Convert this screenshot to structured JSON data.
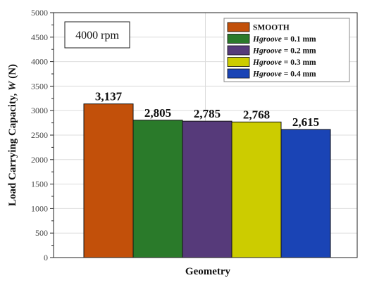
{
  "chart_data": {
    "type": "bar",
    "annotation": "4000 rpm",
    "xlabel": "Geometry",
    "ylabel_main": "Load Carrying Capacity, ",
    "ylabel_var": "W",
    "ylabel_unit": " (N)",
    "ylim": [
      0,
      5000
    ],
    "yticks": [
      0,
      500,
      1000,
      1500,
      2000,
      2500,
      3000,
      3500,
      4000,
      4500,
      5000
    ],
    "grid": true,
    "legend_position": "top-right",
    "series": [
      {
        "name": "SMOOTH",
        "name_var": "",
        "name_rest": "SMOOTH",
        "value": 3137,
        "value_label": "3,137",
        "color": "#c2500a"
      },
      {
        "name": "Hgroove = 0.1 mm",
        "name_var": "Hgroove",
        "name_rest": " = 0.1 mm",
        "value": 2805,
        "value_label": "2,805",
        "color": "#2a7a2a"
      },
      {
        "name": "Hgroove = 0.2 mm",
        "name_var": "Hgroove",
        "name_rest": " = 0.2 mm",
        "value": 2785,
        "value_label": "2,785",
        "color": "#563a7a"
      },
      {
        "name": "Hgroove = 0.3 mm",
        "name_var": "Hgroove",
        "name_rest": " = 0.3 mm",
        "value": 2768,
        "value_label": "2,768",
        "color": "#cccc00"
      },
      {
        "name": "Hgroove = 0.4 mm",
        "name_var": "Hgroove",
        "name_rest": " = 0.4 mm",
        "value": 2615,
        "value_label": "2,615",
        "color": "#1a44b5"
      }
    ]
  }
}
